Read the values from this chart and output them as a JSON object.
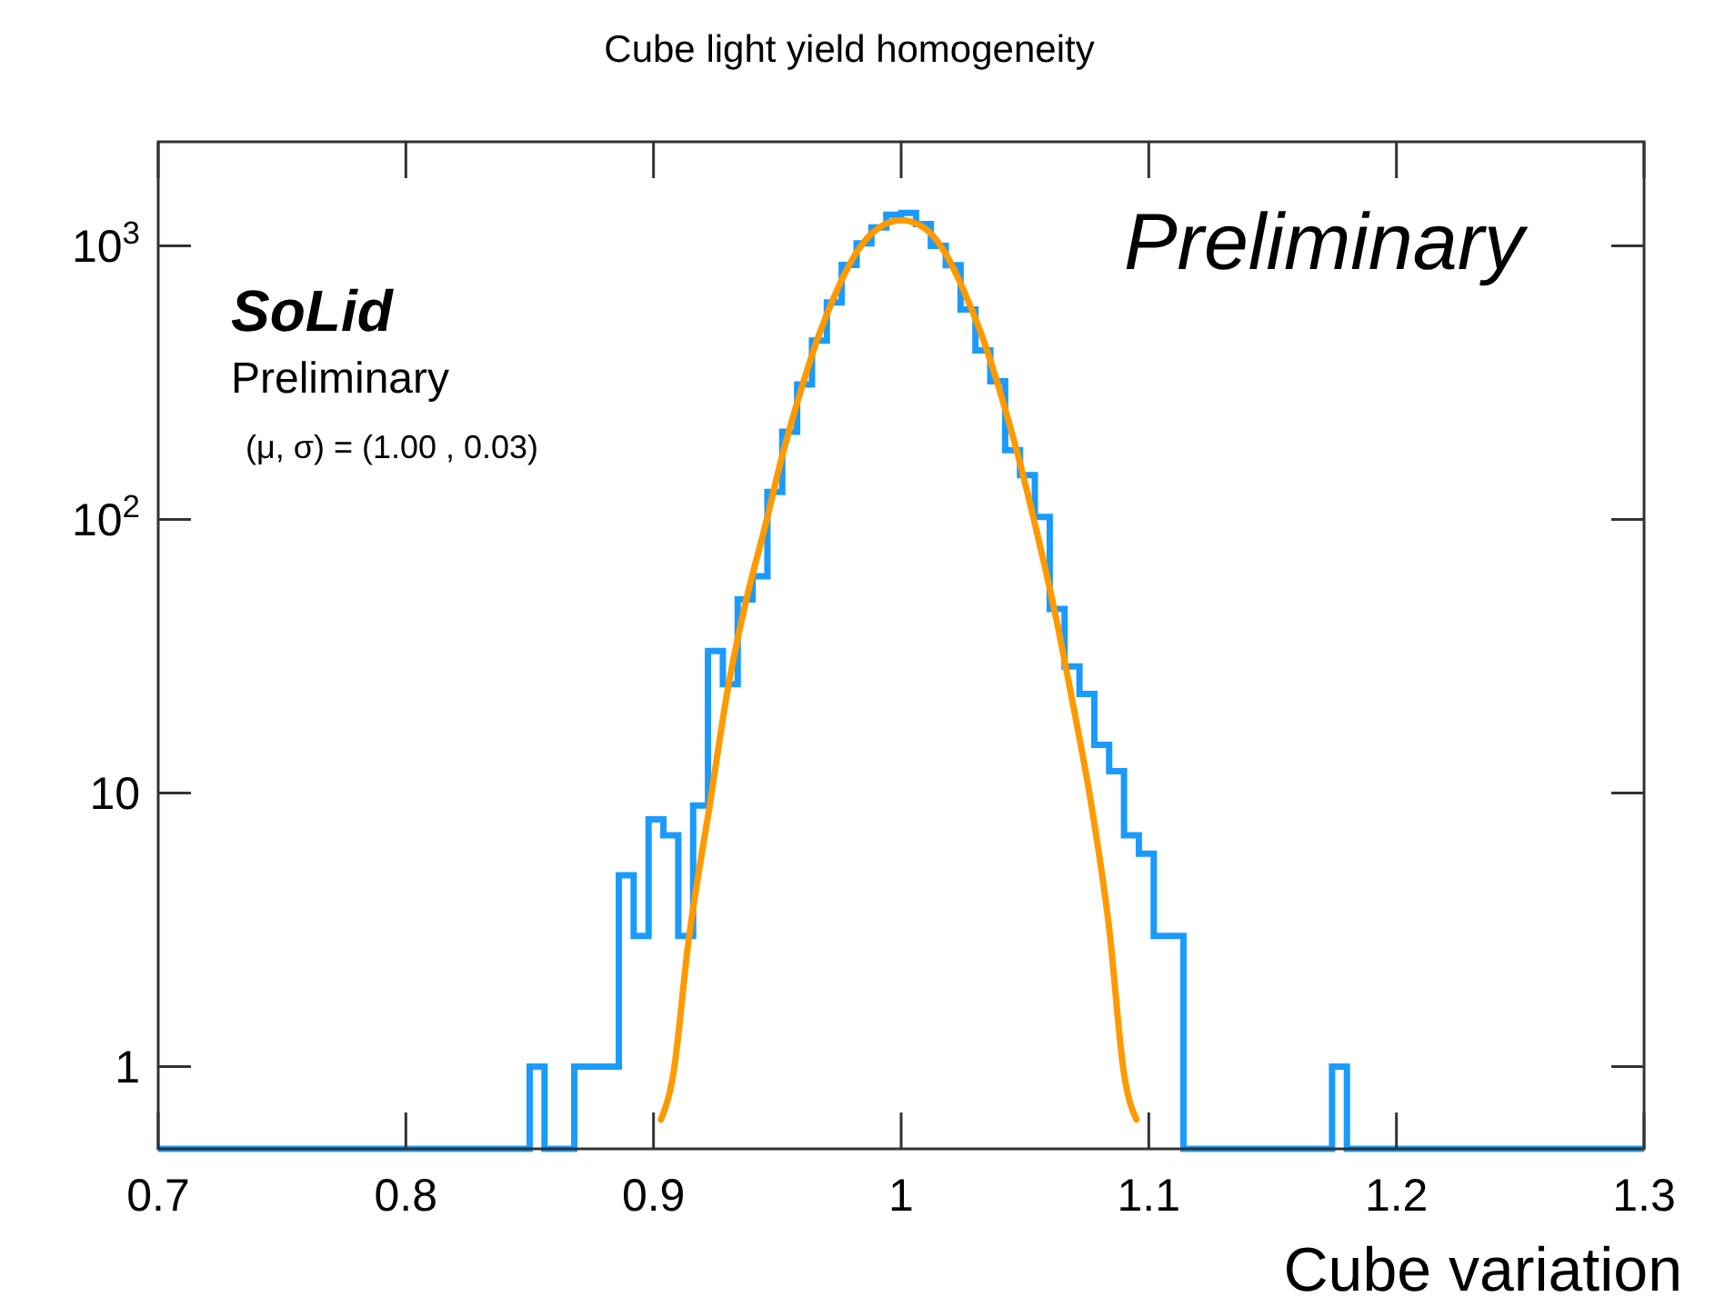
{
  "chart_data": {
    "type": "histogram",
    "title": "Cube light yield homogeneity",
    "xlabel": "Cube variation",
    "log": "y",
    "color": "#1a9bfc",
    "bins": [
      0.7,
      0.706,
      0.712,
      0.718,
      0.724,
      0.73,
      0.736,
      0.742,
      0.748,
      0.754,
      0.76,
      0.766,
      0.772,
      0.778,
      0.784,
      0.79,
      0.796,
      0.802,
      0.808,
      0.814,
      0.82,
      0.826,
      0.832,
      0.838,
      0.844,
      0.85,
      0.856,
      0.862,
      0.868,
      0.874,
      0.88,
      0.886,
      0.892,
      0.898,
      0.904,
      0.91,
      0.916,
      0.922,
      0.928,
      0.934,
      0.94,
      0.946,
      0.952,
      0.958,
      0.964,
      0.97,
      0.976,
      0.982,
      0.988,
      0.994,
      1.0,
      1.006,
      1.012,
      1.018,
      1.024,
      1.03,
      1.036,
      1.042,
      1.048,
      1.054,
      1.06,
      1.066,
      1.072,
      1.078,
      1.084,
      1.09,
      1.096,
      1.102,
      1.108,
      1.114,
      1.12,
      1.126,
      1.132,
      1.138,
      1.144,
      1.15,
      1.156,
      1.162,
      1.168,
      1.174,
      1.18,
      1.186,
      1.192,
      1.198,
      1.204,
      1.21,
      1.216,
      1.222,
      1.228,
      1.234,
      1.24,
      1.246,
      1.252,
      1.258,
      1.264,
      1.27,
      1.276,
      1.282,
      1.288,
      1.294,
      1.3
    ],
    "values": [
      null,
      null,
      null,
      null,
      null,
      null,
      null,
      null,
      null,
      null,
      null,
      null,
      null,
      null,
      null,
      null,
      null,
      null,
      null,
      null,
      null,
      null,
      null,
      null,
      null,
      1,
      null,
      null,
      1,
      1,
      1,
      5,
      3,
      8,
      7,
      3,
      9,
      33,
      25,
      51,
      62,
      126,
      209,
      311,
      450,
      621,
      851,
      1020,
      1166,
      1300,
      1320,
      1200,
      1000,
      850,
      585,
      415,
      320,
      179,
      145,
      102,
      47,
      29,
      23,
      15,
      12,
      7,
      6,
      3,
      3,
      null,
      null,
      null,
      null,
      null,
      null,
      null,
      null,
      null,
      null,
      1,
      null,
      null,
      null,
      null,
      null,
      null,
      null,
      null,
      null,
      null,
      null,
      null,
      null,
      null,
      null,
      null,
      null,
      null,
      null,
      null
    ],
    "series": [
      {
        "type": "line",
        "color": "#ff9900",
        "x": [
          0.903,
          0.908,
          0.914,
          0.923,
          0.93,
          0.9375,
          0.9449,
          0.9522,
          0.9596,
          0.9669,
          0.9743,
          0.9816,
          0.989,
          1.0,
          1.01,
          1.018,
          1.025,
          1.0324,
          1.0397,
          1.047,
          1.0544,
          1.0618,
          1.069,
          1.0765,
          1.084,
          1.09,
          1.095
        ],
        "values": [
          0.64,
          0.94,
          2.8,
          9.4,
          24,
          51,
          93,
          174,
          298,
          475,
          695,
          934,
          1127,
          1240,
          1150,
          934,
          695,
          475,
          298,
          174,
          93,
          47,
          22,
          9.4,
          3.2,
          0.94,
          0.64
        ]
      }
    ],
    "xlim": [
      0.7,
      1.3
    ],
    "ylim": [
      0.5,
      2400
    ],
    "xticks": [
      0.7,
      0.8,
      0.9,
      1,
      1.1,
      1.2,
      1.3
    ],
    "yticks": [
      1,
      10,
      {
        "value": 100,
        "label": "10$^{2}$"
      },
      {
        "value": 1000,
        "label": "10$^{3}$"
      }
    ],
    "annotations": [
      "Preliminary",
      "SoLid",
      "Preliminary",
      "(μ, σ) = (1.00 , 0.03)"
    ]
  }
}
